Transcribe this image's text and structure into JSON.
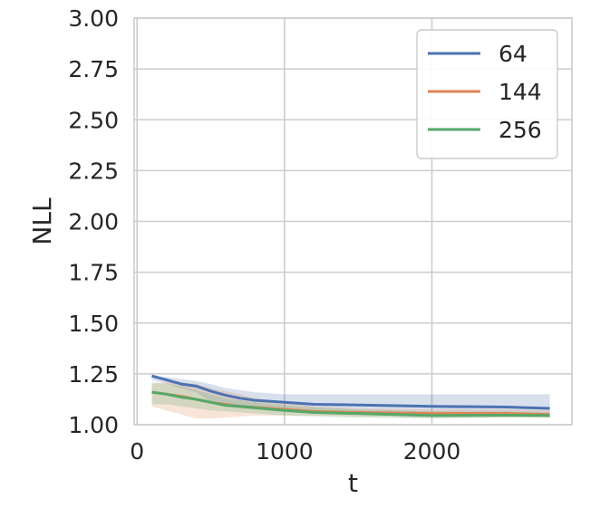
{
  "chart_data": {
    "type": "line",
    "title": "",
    "xlabel": "t",
    "ylabel": "NLL",
    "xlim": [
      -20,
      2950
    ],
    "ylim": [
      1.0,
      3.0
    ],
    "xticks": [
      0,
      1000,
      2000
    ],
    "xtick_labels": [
      "0",
      "1000",
      "2000"
    ],
    "yticks": [
      1.0,
      1.25,
      1.5,
      1.75,
      2.0,
      2.25,
      2.5,
      2.75,
      3.0
    ],
    "ytick_labels": [
      "1.00",
      "1.25",
      "1.50",
      "1.75",
      "2.00",
      "2.25",
      "2.50",
      "2.75",
      "3.00"
    ],
    "grid": true,
    "legend_position": "top-right",
    "series": [
      {
        "name": "64",
        "color": "#4c72b0",
        "x": [
          100,
          200,
          300,
          400,
          500,
          600,
          700,
          800,
          1000,
          1200,
          1500,
          2000,
          2500,
          2800
        ],
        "y": [
          1.24,
          1.22,
          1.2,
          1.19,
          1.165,
          1.145,
          1.13,
          1.12,
          1.11,
          1.1,
          1.097,
          1.09,
          1.087,
          1.08
        ],
        "lower": [
          1.22,
          1.2,
          1.18,
          1.16,
          1.11,
          1.09,
          1.08,
          1.075,
          1.07,
          1.065,
          1.06,
          1.06,
          1.055,
          1.05
        ],
        "upper": [
          1.24,
          1.235,
          1.225,
          1.215,
          1.2,
          1.18,
          1.17,
          1.16,
          1.15,
          1.15,
          1.15,
          1.15,
          1.15,
          1.15
        ]
      },
      {
        "name": "144",
        "color": "#dd8452",
        "x": [
          100,
          200,
          300,
          400,
          500,
          600,
          700,
          800,
          1000,
          1200,
          1500,
          2000,
          2500,
          2800
        ],
        "y": [
          1.16,
          1.15,
          1.14,
          1.125,
          1.11,
          1.1,
          1.09,
          1.085,
          1.075,
          1.065,
          1.06,
          1.055,
          1.055,
          1.05
        ],
        "lower": [
          1.09,
          1.07,
          1.05,
          1.03,
          1.03,
          1.035,
          1.04,
          1.045,
          1.045,
          1.045,
          1.04,
          1.035,
          1.035,
          1.035
        ],
        "upper": [
          1.2,
          1.21,
          1.21,
          1.2,
          1.18,
          1.165,
          1.15,
          1.13,
          1.11,
          1.09,
          1.08,
          1.075,
          1.075,
          1.07
        ]
      },
      {
        "name": "256",
        "color": "#55a868",
        "x": [
          100,
          200,
          300,
          400,
          500,
          600,
          700,
          800,
          1000,
          1200,
          1500,
          2000,
          2500,
          2800
        ],
        "y": [
          1.16,
          1.15,
          1.135,
          1.125,
          1.11,
          1.095,
          1.09,
          1.083,
          1.07,
          1.06,
          1.055,
          1.045,
          1.047,
          1.045
        ],
        "lower": [
          1.1,
          1.1,
          1.09,
          1.08,
          1.07,
          1.065,
          1.06,
          1.055,
          1.045,
          1.04,
          1.035,
          1.03,
          1.035,
          1.035
        ],
        "upper": [
          1.21,
          1.2,
          1.19,
          1.17,
          1.15,
          1.13,
          1.12,
          1.11,
          1.095,
          1.085,
          1.075,
          1.065,
          1.065,
          1.06
        ]
      }
    ]
  }
}
